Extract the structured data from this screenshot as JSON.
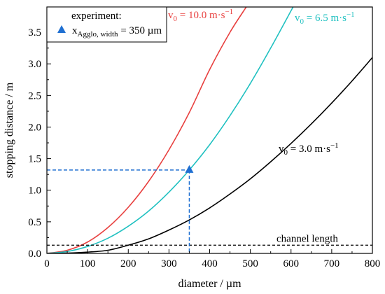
{
  "chart_data": {
    "type": "line",
    "xlabel": "diameter / µm",
    "ylabel": "stopping distance / m",
    "xlim": [
      0,
      800
    ],
    "ylim": [
      0,
      3.9
    ],
    "x_ticks": [
      0,
      100,
      200,
      300,
      400,
      500,
      600,
      700,
      800
    ],
    "y_ticks": [
      0.0,
      0.5,
      1.0,
      1.5,
      2.0,
      2.5,
      3.0,
      3.5
    ],
    "grid": false,
    "series": [
      {
        "name": "v0 = 10.0 m·s-1",
        "label_main": "v",
        "label_sub": "0",
        "label_rest": " = 10.0 m·s",
        "label_sup": "−1",
        "color": "#e8403f",
        "x": [
          0,
          50,
          100,
          150,
          200,
          250,
          300,
          350,
          400,
          450,
          490
        ],
        "y": [
          0,
          0.05,
          0.18,
          0.41,
          0.73,
          1.14,
          1.64,
          2.23,
          2.91,
          3.5,
          3.9
        ]
      },
      {
        "name": "v0 = 6.5 m·s-1",
        "label_main": "v",
        "label_sub": "0",
        "label_rest": " =  6.5 m·s",
        "label_sup": "−1",
        "color": "#21c1c1",
        "x": [
          0,
          50,
          100,
          150,
          200,
          250,
          300,
          350,
          400,
          450,
          500,
          550,
          605
        ],
        "y": [
          0,
          0.03,
          0.11,
          0.24,
          0.43,
          0.67,
          0.97,
          1.32,
          1.72,
          2.18,
          2.69,
          3.25,
          3.9
        ]
      },
      {
        "name": "v0 = 3.0 m·s-1",
        "label_main": "v",
        "label_sub": "0",
        "label_rest": " =  3.0 m·s",
        "label_sup": "−1",
        "color": "#000000",
        "x": [
          0,
          50,
          100,
          150,
          200,
          250,
          300,
          350,
          400,
          450,
          500,
          550,
          600,
          650,
          700,
          750,
          800
        ],
        "y": [
          0,
          0.005,
          0.02,
          0.05,
          0.13,
          0.23,
          0.37,
          0.53,
          0.72,
          0.94,
          1.18,
          1.45,
          1.74,
          2.05,
          2.38,
          2.73,
          3.1
        ]
      }
    ],
    "reference_line": {
      "label": "channel length",
      "y": 0.13,
      "color": "#000000"
    },
    "experiment_point": {
      "x": 350,
      "y": 1.32,
      "color": "#1f6fd1"
    },
    "legend": {
      "title": "experiment:",
      "entry_main": "x",
      "entry_sub": "Agglo, width",
      "entry_rest": " = 350 µm",
      "placement": "top-left"
    }
  }
}
